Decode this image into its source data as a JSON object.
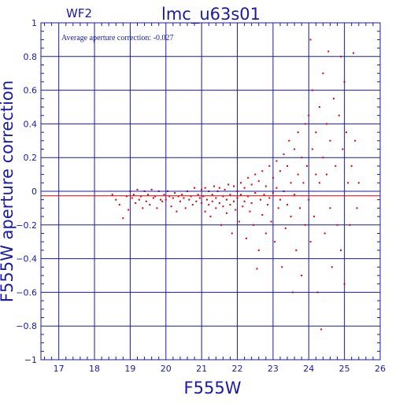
{
  "chart_data": {
    "type": "scatter",
    "title": "lmc_u63s01",
    "subtitle": "WF2",
    "xlabel": "F555W",
    "ylabel": "F555W aperture correction",
    "annotation": "Average aperture correction: -0.027",
    "xlim": [
      16.5,
      26
    ],
    "ylim": [
      -1,
      1
    ],
    "x_ticks": [
      "17",
      "18",
      "19",
      "20",
      "21",
      "22",
      "23",
      "24",
      "25",
      "26"
    ],
    "y_ticks": [
      "1",
      "0.8",
      "0.6",
      "0.4",
      "0.2",
      "0",
      "−0.2",
      "−0.4",
      "−0.6",
      "−0.8",
      "−1"
    ],
    "grid": true,
    "average_line": -0.027,
    "zero_line": 0,
    "colors": {
      "frame": "#1a1aa6",
      "grid": "#1a1aa6",
      "points": "#e00000",
      "average_line": "#e00000"
    },
    "points": [
      [
        18.5,
        -0.02
      ],
      [
        18.6,
        -0.05
      ],
      [
        18.7,
        -0.08
      ],
      [
        18.8,
        -0.16
      ],
      [
        18.9,
        -0.03
      ],
      [
        18.95,
        -0.11
      ],
      [
        19.0,
        0.0
      ],
      [
        19.05,
        -0.04
      ],
      [
        19.1,
        -0.02
      ],
      [
        19.15,
        -0.07
      ],
      [
        19.2,
        0.01
      ],
      [
        19.25,
        -0.05
      ],
      [
        19.3,
        -0.03
      ],
      [
        19.35,
        -0.1
      ],
      [
        19.4,
        0.0
      ],
      [
        19.45,
        -0.06
      ],
      [
        19.5,
        -0.02
      ],
      [
        19.55,
        -0.08
      ],
      [
        19.6,
        0.01
      ],
      [
        19.65,
        -0.04
      ],
      [
        19.7,
        -0.03
      ],
      [
        19.75,
        -0.1
      ],
      [
        19.8,
        0.0
      ],
      [
        19.85,
        -0.05
      ],
      [
        19.9,
        -0.06
      ],
      [
        19.95,
        -0.02
      ],
      [
        20.0,
        -0.05
      ],
      [
        20.05,
        0.0
      ],
      [
        20.1,
        -0.03
      ],
      [
        20.15,
        -0.09
      ],
      [
        20.2,
        -0.04
      ],
      [
        20.25,
        -0.01
      ],
      [
        20.3,
        -0.12
      ],
      [
        20.35,
        -0.03
      ],
      [
        20.4,
        -0.06
      ],
      [
        20.45,
        -0.02
      ],
      [
        20.5,
        -0.04
      ],
      [
        20.55,
        -0.1
      ],
      [
        20.6,
        0.0
      ],
      [
        20.65,
        -0.05
      ],
      [
        20.7,
        -0.03
      ],
      [
        20.75,
        -0.08
      ],
      [
        20.8,
        0.02
      ],
      [
        20.85,
        -0.06
      ],
      [
        20.9,
        -0.02
      ],
      [
        20.95,
        -0.04
      ],
      [
        21.0,
        -0.07
      ],
      [
        21.0,
        0.01
      ],
      [
        21.05,
        -0.03
      ],
      [
        21.1,
        -0.12
      ],
      [
        21.1,
        0.02
      ],
      [
        21.15,
        -0.05
      ],
      [
        21.2,
        -0.08
      ],
      [
        21.2,
        0.0
      ],
      [
        21.25,
        -0.15
      ],
      [
        21.3,
        -0.02
      ],
      [
        21.3,
        -0.06
      ],
      [
        21.35,
        0.03
      ],
      [
        21.4,
        -0.1
      ],
      [
        21.4,
        -0.04
      ],
      [
        21.45,
        0.0
      ],
      [
        21.5,
        -0.07
      ],
      [
        21.5,
        0.02
      ],
      [
        21.55,
        -0.2
      ],
      [
        21.6,
        -0.03
      ],
      [
        21.6,
        -0.09
      ],
      [
        21.65,
        0.01
      ],
      [
        21.7,
        -0.05
      ],
      [
        21.7,
        -0.13
      ],
      [
        21.75,
        0.04
      ],
      [
        21.8,
        -0.02
      ],
      [
        21.8,
        -0.08
      ],
      [
        21.85,
        -0.25
      ],
      [
        21.9,
        0.03
      ],
      [
        21.9,
        -0.06
      ],
      [
        21.95,
        -0.11
      ],
      [
        22.0,
        0.0
      ],
      [
        22.0,
        -0.04
      ],
      [
        22.05,
        -0.18
      ],
      [
        22.1,
        0.05
      ],
      [
        22.1,
        -0.02
      ],
      [
        22.15,
        -0.09
      ],
      [
        22.2,
        0.02
      ],
      [
        22.2,
        -0.06
      ],
      [
        22.25,
        -0.28
      ],
      [
        22.3,
        0.08
      ],
      [
        22.3,
        -0.03
      ],
      [
        22.35,
        -0.12
      ],
      [
        22.4,
        0.04
      ],
      [
        22.4,
        -0.07
      ],
      [
        22.45,
        -0.2
      ],
      [
        22.5,
        0.1
      ],
      [
        22.5,
        -0.01
      ],
      [
        22.55,
        -0.46
      ],
      [
        22.6,
        -0.35
      ],
      [
        22.6,
        0.06
      ],
      [
        22.65,
        -0.05
      ],
      [
        22.7,
        -0.14
      ],
      [
        22.7,
        0.12
      ],
      [
        22.75,
        -0.02
      ],
      [
        22.8,
        -0.25
      ],
      [
        22.8,
        0.03
      ],
      [
        22.85,
        -0.08
      ],
      [
        22.9,
        0.15
      ],
      [
        22.9,
        -0.04
      ],
      [
        22.95,
        -0.18
      ],
      [
        23.0,
        0.08
      ],
      [
        23.0,
        -0.01
      ],
      [
        23.05,
        -0.3
      ],
      [
        23.1,
        0.18
      ],
      [
        23.1,
        0.02
      ],
      [
        23.15,
        -0.1
      ],
      [
        23.2,
        0.12
      ],
      [
        23.2,
        -0.05
      ],
      [
        23.25,
        -0.45
      ],
      [
        23.3,
        0.22
      ],
      [
        23.3,
        0.0
      ],
      [
        23.35,
        -0.22
      ],
      [
        23.4,
        0.15
      ],
      [
        23.4,
        -0.08
      ],
      [
        23.45,
        0.3
      ],
      [
        23.5,
        0.05
      ],
      [
        23.5,
        -0.15
      ],
      [
        23.55,
        -0.6
      ],
      [
        23.6,
        0.25
      ],
      [
        23.6,
        -0.02
      ],
      [
        23.65,
        -0.35
      ],
      [
        23.7,
        0.1
      ],
      [
        23.7,
        0.35
      ],
      [
        23.75,
        -0.1
      ],
      [
        23.8,
        0.2
      ],
      [
        23.8,
        -0.5
      ],
      [
        23.85,
        0.05
      ],
      [
        23.9,
        0.4
      ],
      [
        23.9,
        -0.2
      ],
      [
        23.95,
        0.15
      ],
      [
        24.0,
        0.45
      ],
      [
        24.0,
        -0.05
      ],
      [
        24.05,
        0.9
      ],
      [
        24.05,
        -0.3
      ],
      [
        24.1,
        0.25
      ],
      [
        24.1,
        0.6
      ],
      [
        24.15,
        -0.15
      ],
      [
        24.2,
        0.1
      ],
      [
        24.2,
        0.35
      ],
      [
        24.25,
        -0.6
      ],
      [
        24.3,
        0.5
      ],
      [
        24.3,
        0.05
      ],
      [
        24.35,
        -0.82
      ],
      [
        24.4,
        0.2
      ],
      [
        24.4,
        0.7
      ],
      [
        24.45,
        -0.25
      ],
      [
        24.5,
        0.4
      ],
      [
        24.5,
        0.1
      ],
      [
        24.55,
        0.83
      ],
      [
        24.6,
        -0.1
      ],
      [
        24.6,
        0.3
      ],
      [
        24.65,
        -0.45
      ],
      [
        24.7,
        0.55
      ],
      [
        24.75,
        0.15
      ],
      [
        24.8,
        -0.2
      ],
      [
        24.85,
        0.45
      ],
      [
        24.9,
        0.8
      ],
      [
        24.9,
        -0.35
      ],
      [
        24.95,
        0.25
      ],
      [
        25.0,
        0.65
      ],
      [
        25.0,
        -0.55
      ],
      [
        25.05,
        0.35
      ],
      [
        25.1,
        0.05
      ],
      [
        25.15,
        -0.2
      ],
      [
        25.2,
        0.15
      ],
      [
        25.25,
        0.82
      ],
      [
        25.3,
        0.3
      ],
      [
        25.35,
        -0.1
      ],
      [
        25.4,
        0.05
      ]
    ]
  }
}
